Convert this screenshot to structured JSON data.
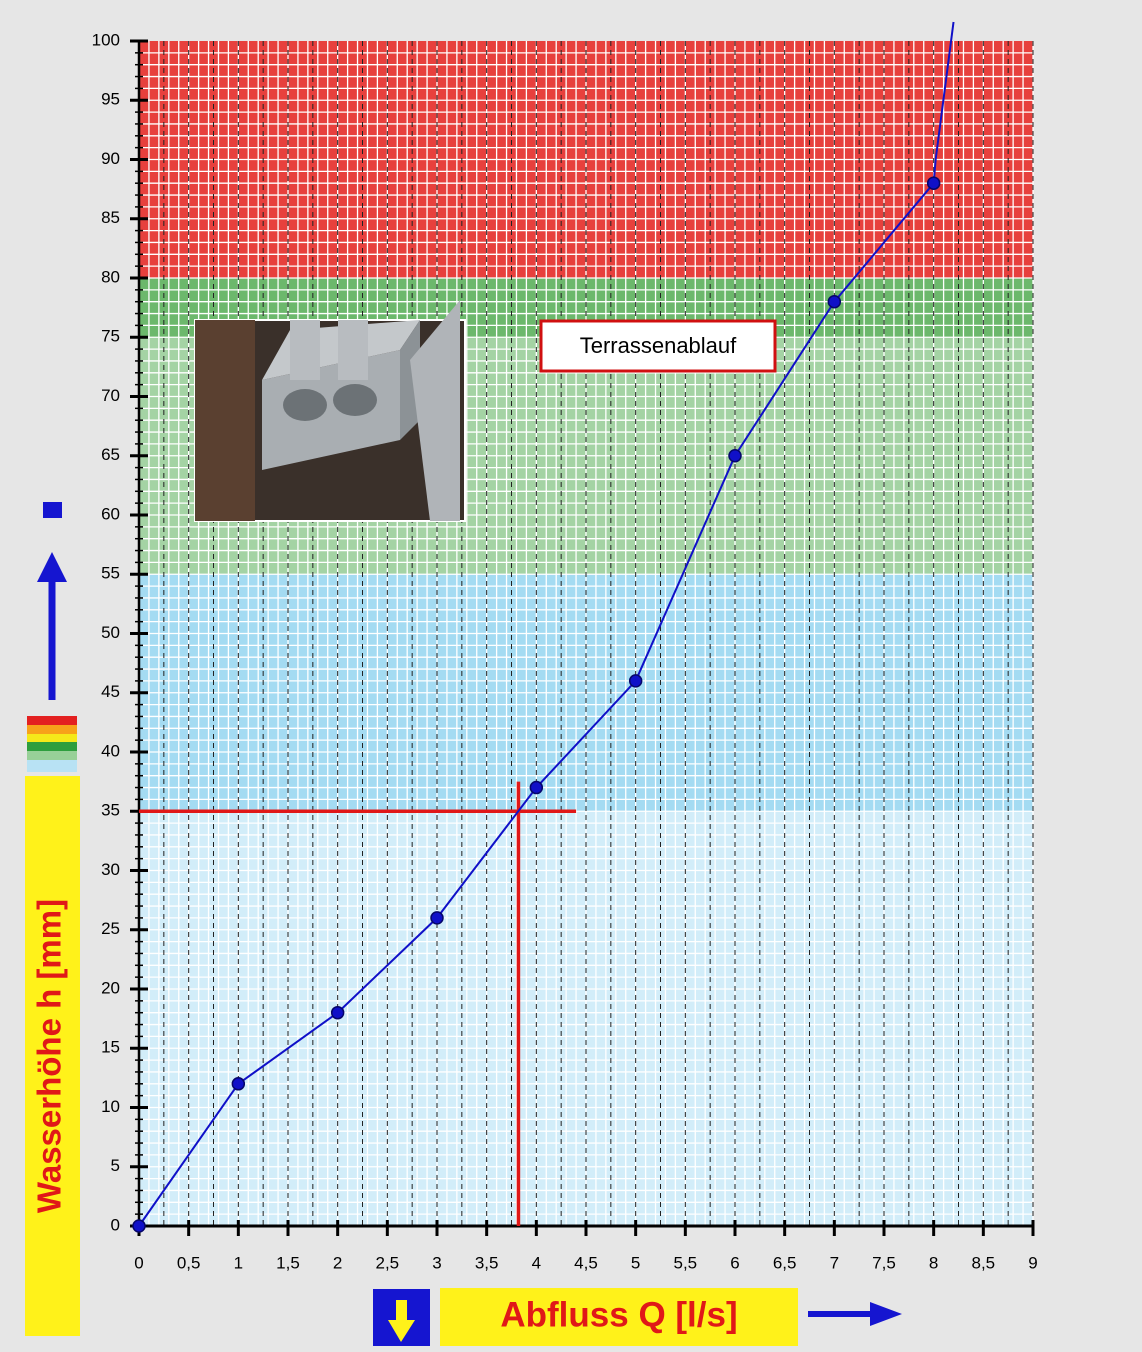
{
  "chart_data": {
    "type": "line",
    "x_label": "Abfluss Q [l/s]",
    "y_label": "Wasserhöhe h [mm]",
    "annotation": "Terrassenablauf",
    "x": [
      0,
      1,
      2,
      3,
      4,
      5,
      6,
      7,
      8
    ],
    "series": [
      {
        "color": "#1010c8",
        "values": [
          0,
          12,
          18,
          26,
          37,
          46,
          65,
          78,
          88
        ]
      }
    ],
    "extension": {
      "x": [
        8,
        8.02,
        8.2
      ],
      "values": [
        88,
        90,
        101.6
      ]
    },
    "xlim": [
      0,
      9
    ],
    "ylim": [
      0,
      100
    ],
    "xticks": [
      0,
      {
        "value": 0.5,
        "label": "0,5"
      },
      1,
      {
        "value": 1.5,
        "label": "1,5"
      },
      2,
      {
        "value": 2.5,
        "label": "2,5"
      },
      3,
      {
        "value": 3.5,
        "label": "3,5"
      },
      4,
      {
        "value": 4.5,
        "label": "4,5"
      },
      5,
      {
        "value": 5.5,
        "label": "5,5"
      },
      6,
      {
        "value": 6.5,
        "label": "6,5"
      },
      7,
      {
        "value": 7.5,
        "label": "7,5"
      },
      8,
      {
        "value": 8.5,
        "label": "8,5"
      },
      9
    ],
    "yticks": [
      0,
      5,
      10,
      15,
      20,
      25,
      30,
      35,
      40,
      45,
      50,
      55,
      60,
      65,
      70,
      75,
      80,
      85,
      90,
      95,
      100
    ],
    "bands": [
      {
        "from": 0,
        "to": 35,
        "color": "#d2edf9"
      },
      {
        "from": 35,
        "to": 55,
        "color": "#a4dbf2"
      },
      {
        "from": 55,
        "to": 75,
        "color": "#a4d3a4"
      },
      {
        "from": 75,
        "to": 80,
        "color": "#6cb86c"
      },
      {
        "from": 80,
        "to": 100,
        "color": "#e7403d"
      }
    ],
    "reference_lines": [
      {
        "axis": "y",
        "value": 35,
        "from": 0,
        "to": 4.4,
        "color": "#e01818"
      },
      {
        "axis": "x",
        "value": 3.82,
        "from": 0,
        "to": 37.5,
        "color": "#e01818"
      }
    ],
    "grid": true,
    "x_grid_step": 0.1,
    "x_dash_step": 0.25,
    "y_grid_step": 1
  }
}
